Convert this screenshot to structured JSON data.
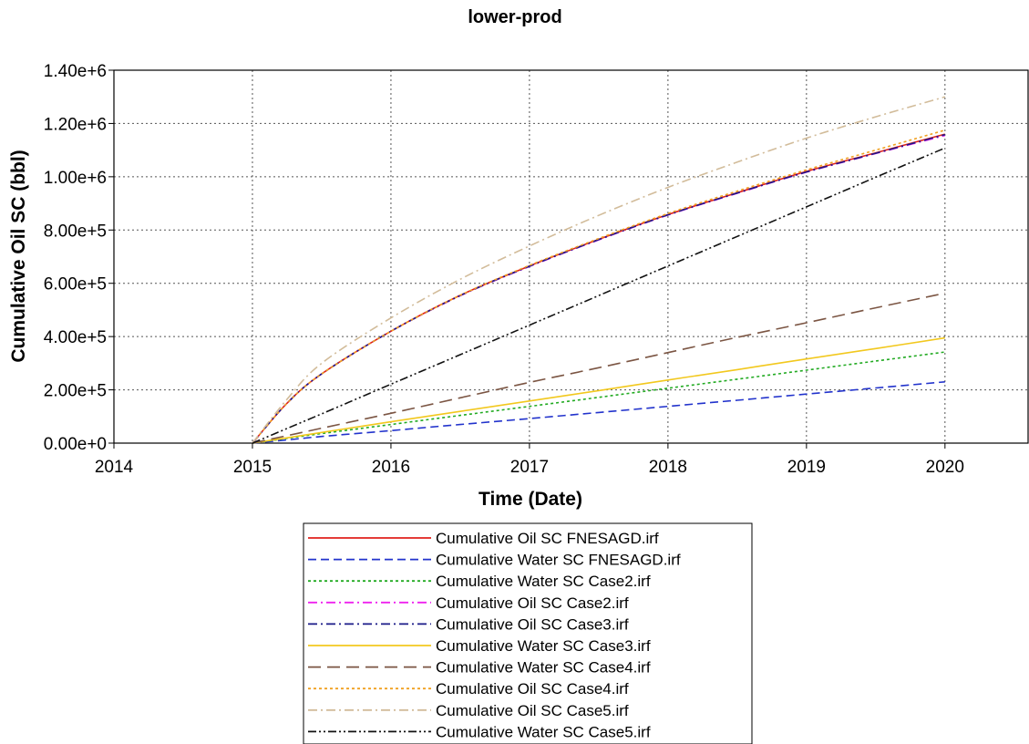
{
  "chart_data": {
    "type": "line",
    "title": "lower-prod",
    "xlabel": "Time (Date)",
    "ylabel": "Cumulative Oil SC (bbl)",
    "x_tick_labels": [
      "2014",
      "2015",
      "2016",
      "2017",
      "2018",
      "2019",
      "2020"
    ],
    "y_tick_labels": [
      "0.00e+0",
      "2.00e+5",
      "4.00e+5",
      "6.00e+5",
      "8.00e+5",
      "1.00e+6",
      "1.20e+6",
      "1.40e+6"
    ],
    "xlim": [
      2014.0,
      2020.6
    ],
    "ylim": [
      0,
      1400000
    ],
    "grid": true,
    "legend_position": "bottom",
    "x": [
      2015.0,
      2015.25,
      2015.5,
      2016.0,
      2016.5,
      2017.0,
      2017.5,
      2018.0,
      2018.5,
      2019.0,
      2019.5,
      2020.0
    ],
    "series": [
      {
        "name": "Cumulative Oil SC FNESAGD.irf",
        "color": "#e0201c",
        "dash": "solid",
        "values": [
          0,
          150000,
          260000,
          420000,
          555000,
          665000,
          765000,
          858000,
          940000,
          1020000,
          1090000,
          1160000
        ]
      },
      {
        "name": "Cumulative Water SC FNESAGD.irf",
        "color": "#2233cc",
        "dash": "dash",
        "values": [
          0,
          12000,
          25000,
          47000,
          70000,
          92000,
          115000,
          138000,
          161000,
          184000,
          207000,
          230000
        ]
      },
      {
        "name": "Cumulative Water SC Case2.irf",
        "color": "#22aa22",
        "dash": "dot",
        "values": [
          0,
          18000,
          36000,
          70000,
          104000,
          138000,
          172000,
          206000,
          240000,
          274000,
          308000,
          342000
        ]
      },
      {
        "name": "Cumulative Oil SC Case2.irf",
        "color": "#ee22ee",
        "dash": "dashdot",
        "values": [
          0,
          150000,
          260000,
          420000,
          553000,
          663000,
          763000,
          856000,
          938000,
          1017000,
          1087000,
          1155000
        ]
      },
      {
        "name": "Cumulative Oil SC Case3.irf",
        "color": "#1a1a88",
        "dash": "dashdot",
        "values": [
          0,
          150000,
          260000,
          420000,
          554000,
          664000,
          764000,
          857000,
          939000,
          1018000,
          1088000,
          1158000
        ]
      },
      {
        "name": "Cumulative Water SC Case3.irf",
        "color": "#f2c81e",
        "dash": "solid",
        "values": [
          0,
          20000,
          40000,
          80000,
          119000,
          158000,
          197000,
          237000,
          276000,
          316000,
          355000,
          395000
        ]
      },
      {
        "name": "Cumulative Water SC Case4.irf",
        "color": "#7b5543",
        "dash": "longdash",
        "values": [
          0,
          28000,
          56000,
          112000,
          170000,
          228000,
          283000,
          340000,
          397000,
          452000,
          508000,
          563000
        ]
      },
      {
        "name": "Cumulative Oil SC Case4.irf",
        "color": "#f0a020",
        "dash": "dot",
        "values": [
          0,
          150000,
          260000,
          420000,
          555000,
          667000,
          768000,
          862000,
          946000,
          1026000,
          1100000,
          1175000
        ]
      },
      {
        "name": "Cumulative Oil SC Case5.irf",
        "color": "#d2bc9a",
        "dash": "dashdot",
        "values": [
          0,
          165000,
          300000,
          470000,
          615000,
          740000,
          855000,
          960000,
          1055000,
          1145000,
          1225000,
          1300000
        ]
      },
      {
        "name": "Cumulative Water SC Case5.irf",
        "color": "#111111",
        "dash": "dashdotdot",
        "values": [
          0,
          55000,
          110000,
          221000,
          332000,
          443000,
          554000,
          665000,
          776000,
          887000,
          998000,
          1108000
        ]
      }
    ]
  }
}
